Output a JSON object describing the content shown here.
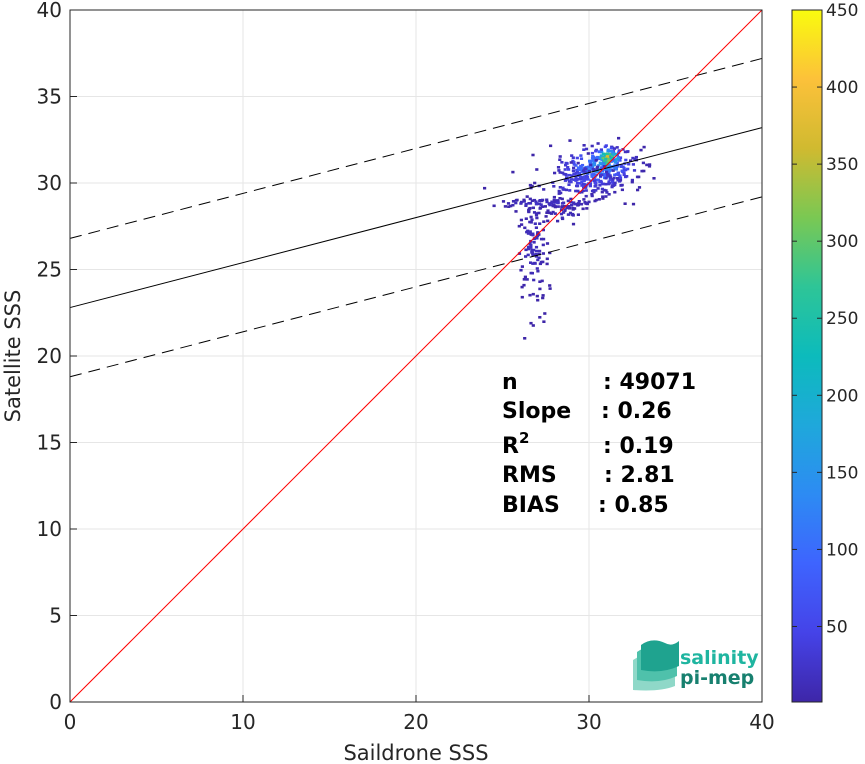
{
  "chart_data": {
    "type": "heatmap",
    "title": "",
    "xlabel": "Saildrone SSS",
    "ylabel": "Satellite SSS",
    "xlim": [
      0,
      40
    ],
    "ylim": [
      0,
      40
    ],
    "xticks": [
      "0",
      "10",
      "20",
      "30",
      "40"
    ],
    "yticks": [
      "0",
      "5",
      "10",
      "15",
      "20",
      "25",
      "30",
      "35",
      "40"
    ],
    "grid": true,
    "colorbar": {
      "colormap": "parula",
      "range": [
        1,
        450
      ],
      "ticks": [
        "50",
        "100",
        "150",
        "200",
        "250",
        "300",
        "350",
        "400",
        "450"
      ],
      "tick_values": [
        50,
        100,
        150,
        200,
        250,
        300,
        350,
        400,
        450
      ]
    },
    "reference_lines": {
      "one_to_one": {
        "slope": 1,
        "intercept": 0,
        "color": "#ff0000"
      },
      "regression": {
        "slope": 0.26,
        "intercept": 22.8,
        "color": "#000000"
      },
      "upper_bound": {
        "slope": 0.26,
        "intercept": 26.8,
        "style": "dashed"
      },
      "lower_bound": {
        "slope": 0.26,
        "intercept": 18.8,
        "style": "dashed"
      }
    },
    "density_clusters": [
      {
        "x": 30.5,
        "y": 31.0,
        "sx": 1.1,
        "sy": 0.6,
        "peak": 180,
        "n": 260
      },
      {
        "x": 31.0,
        "y": 31.5,
        "sx": 0.4,
        "sy": 0.35,
        "peak": 420,
        "n": 60
      },
      {
        "x": 29.5,
        "y": 30.2,
        "sx": 1.4,
        "sy": 0.5,
        "peak": 60,
        "n": 140
      },
      {
        "x": 27.5,
        "y": 28.9,
        "sx": 1.8,
        "sy": 0.15,
        "peak": 25,
        "n": 80
      },
      {
        "x": 26.7,
        "y": 26.5,
        "sx": 0.45,
        "sy": 1.6,
        "peak": 20,
        "n": 120
      },
      {
        "x": 28.5,
        "y": 28.3,
        "sx": 0.6,
        "sy": 0.3,
        "peak": 15,
        "n": 30
      }
    ],
    "stats": [
      {
        "label": "n",
        "value": ": 49071"
      },
      {
        "label": "Slope",
        "value": ": 0.26"
      },
      {
        "label": "R",
        "sup": "2",
        "value": ": 0.19"
      },
      {
        "label": "RMS",
        "value": ": 2.81"
      },
      {
        "label": "BIAS",
        "value": ": 0.85"
      }
    ]
  },
  "logo": {
    "line1": "salinity",
    "line2": "pi-mep",
    "color1": "#1fb5a0",
    "color2": "#17806f"
  }
}
